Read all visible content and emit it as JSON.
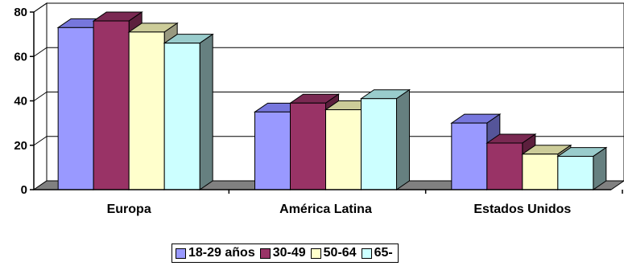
{
  "chart_data": {
    "type": "bar",
    "categories": [
      "Europa",
      "América Latina",
      "Estados Unidos"
    ],
    "series": [
      {
        "name": "18-29 años",
        "values": [
          73,
          35,
          30
        ],
        "color": "#9999FF",
        "top_color": "#7777DD",
        "side_color": "#555599"
      },
      {
        "name": "30-49",
        "values": [
          76,
          39,
          21
        ],
        "color": "#993366",
        "top_color": "#7A2952",
        "side_color": "#5C1F3D"
      },
      {
        "name": "50-64",
        "values": [
          71,
          36,
          16
        ],
        "color": "#FFFFCC",
        "top_color": "#CCCC99",
        "side_color": "#999980"
      },
      {
        "name": "65-",
        "values": [
          66,
          41,
          15
        ],
        "color": "#CCFFFF",
        "top_color": "#99CCCC",
        "side_color": "#668080"
      }
    ],
    "yticks": [
      0,
      20,
      40,
      60,
      80
    ],
    "ylim": [
      0,
      80
    ],
    "grid": true,
    "legend_position": "bottom",
    "title": "",
    "xlabel": "",
    "ylabel": "",
    "wall_color": "#FFFFFF",
    "floor_color": "#808080"
  }
}
